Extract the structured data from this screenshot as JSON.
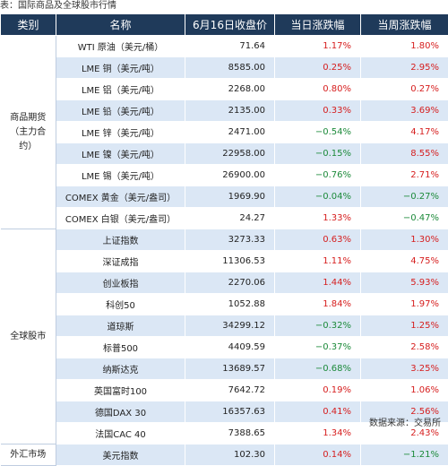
{
  "caption": "表：国际商品及全球股市行情",
  "headers": {
    "category": "类别",
    "name": "名称",
    "close": "6月16日收盘价",
    "daily": "当日涨跌幅",
    "weekly": "当周涨跌幅"
  },
  "colors": {
    "header_bg": "#1f3a5a",
    "row_alt": "#dbe7f5",
    "rise": "#d61e1e",
    "fall": "#1c8a3a"
  },
  "groups": [
    {
      "label": "商品期货（主力合约）",
      "rows": [
        {
          "name": "WTI 原油（美元/桶）",
          "close": "71.64",
          "daily": "1.17%",
          "weekly": "1.80%"
        },
        {
          "name": "LME 铜（美元/吨）",
          "close": "8585.00",
          "daily": "0.25%",
          "weekly": "2.95%"
        },
        {
          "name": "LME 铝（美元/吨）",
          "close": "2268.00",
          "daily": "0.80%",
          "weekly": "0.27%"
        },
        {
          "name": "LME 铅（美元/吨）",
          "close": "2135.00",
          "daily": "0.33%",
          "weekly": "3.69%"
        },
        {
          "name": "LME 锌（美元/吨）",
          "close": "2471.00",
          "daily": "−0.54%",
          "weekly": "4.17%"
        },
        {
          "name": "LME 镍（美元/吨）",
          "close": "22958.00",
          "daily": "−0.15%",
          "weekly": "8.55%"
        },
        {
          "name": "LME 锡（美元/吨）",
          "close": "26900.00",
          "daily": "−0.76%",
          "weekly": "2.71%"
        },
        {
          "name": "COMEX 黄金（美元/盎司）",
          "close": "1969.90",
          "daily": "−0.04%",
          "weekly": "−0.27%"
        },
        {
          "name": "COMEX 白银（美元/盎司）",
          "close": "24.27",
          "daily": "1.33%",
          "weekly": "−0.47%"
        }
      ]
    },
    {
      "label": "全球股市",
      "rows": [
        {
          "name": "上证指数",
          "close": "3273.33",
          "daily": "0.63%",
          "weekly": "1.30%"
        },
        {
          "name": "深证成指",
          "close": "11306.53",
          "daily": "1.11%",
          "weekly": "4.75%"
        },
        {
          "name": "创业板指",
          "close": "2270.06",
          "daily": "1.44%",
          "weekly": "5.93%"
        },
        {
          "name": "科创50",
          "close": "1052.88",
          "daily": "1.84%",
          "weekly": "1.97%"
        },
        {
          "name": "道琼斯",
          "close": "34299.12",
          "daily": "−0.32%",
          "weekly": "1.25%"
        },
        {
          "name": "标普500",
          "close": "4409.59",
          "daily": "−0.37%",
          "weekly": "2.58%"
        },
        {
          "name": "纳斯达克",
          "close": "13689.57",
          "daily": "−0.68%",
          "weekly": "3.25%"
        },
        {
          "name": "英国富时100",
          "close": "7642.72",
          "daily": "0.19%",
          "weekly": "1.06%"
        },
        {
          "name": "德国DAX 30",
          "close": "16357.63",
          "daily": "0.41%",
          "weekly": "2.56%"
        },
        {
          "name": "法国CAC 40",
          "close": "7388.65",
          "daily": "1.34%",
          "weekly": "2.43%"
        }
      ]
    },
    {
      "label": "外汇市场",
      "rows": [
        {
          "name": "美元指数",
          "close": "102.30",
          "daily": "0.14%",
          "weekly": "−1.21%"
        }
      ]
    }
  ],
  "source": "数据来源：交易所"
}
